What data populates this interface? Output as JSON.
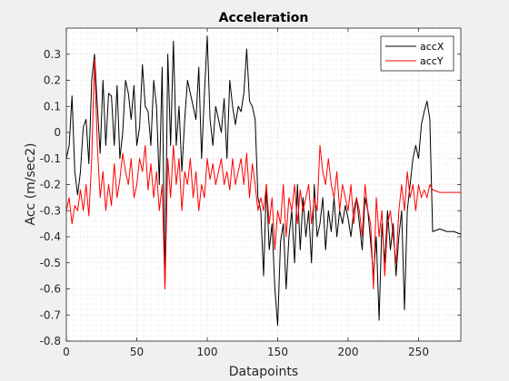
{
  "chart_data": {
    "type": "line",
    "title": "Acceleration",
    "xlabel": "Datapoints",
    "ylabel": "Acc (m/sec2)",
    "xlim": [
      0,
      280
    ],
    "ylim": [
      -0.8,
      0.4
    ],
    "xticks": [
      0,
      50,
      100,
      150,
      200,
      250
    ],
    "yticks": [
      -0.8,
      -0.7,
      -0.6,
      -0.5,
      -0.4,
      -0.3,
      -0.2,
      -0.1,
      0,
      0.1,
      0.2,
      0.3
    ],
    "grid": true,
    "minor_grid": true,
    "legend_position": "top-right",
    "series": [
      {
        "name": "accX",
        "color": "#000000",
        "x": [
          0,
          2,
          4,
          6,
          8,
          10,
          12,
          14,
          16,
          18,
          20,
          22,
          24,
          26,
          28,
          30,
          32,
          34,
          36,
          38,
          40,
          42,
          44,
          46,
          48,
          50,
          52,
          54,
          56,
          58,
          60,
          62,
          64,
          66,
          68,
          70,
          72,
          74,
          76,
          78,
          80,
          82,
          84,
          86,
          88,
          90,
          92,
          94,
          96,
          98,
          100,
          102,
          104,
          106,
          108,
          110,
          112,
          114,
          116,
          118,
          120,
          122,
          124,
          126,
          128,
          130,
          132,
          134,
          136,
          138,
          140,
          142,
          144,
          146,
          148,
          150,
          152,
          154,
          156,
          158,
          160,
          162,
          164,
          166,
          168,
          170,
          172,
          174,
          176,
          178,
          180,
          182,
          184,
          186,
          188,
          190,
          192,
          194,
          196,
          198,
          200,
          202,
          204,
          206,
          208,
          210,
          212,
          214,
          216,
          218,
          220,
          222,
          224,
          226,
          228,
          230,
          232,
          234,
          236,
          238,
          240,
          242,
          244,
          246,
          248,
          250,
          252,
          254,
          256,
          258,
          260,
          265,
          270,
          275,
          280
        ],
        "y": [
          -0.1,
          -0.05,
          0.14,
          -0.15,
          -0.24,
          -0.15,
          0.02,
          0.05,
          -0.12,
          0.2,
          0.3,
          0.1,
          -0.08,
          0.2,
          -0.05,
          0.15,
          0.14,
          -0.05,
          0.18,
          -0.1,
          0.0,
          0.2,
          0.15,
          0.05,
          0.18,
          -0.05,
          0.02,
          0.26,
          0.1,
          0.08,
          -0.05,
          0.2,
          0.1,
          -0.2,
          0.25,
          -0.6,
          0.3,
          -0.05,
          0.35,
          -0.05,
          0.1,
          -0.15,
          0.05,
          0.2,
          0.15,
          0.1,
          0.05,
          0.25,
          -0.1,
          0.15,
          0.37,
          0.05,
          -0.05,
          0.1,
          0.05,
          0.0,
          0.13,
          -0.1,
          0.2,
          0.1,
          0.03,
          0.1,
          0.08,
          0.15,
          0.32,
          0.12,
          0.1,
          0.05,
          -0.25,
          -0.3,
          -0.55,
          -0.2,
          -0.45,
          -0.35,
          -0.6,
          -0.74,
          -0.42,
          -0.35,
          -0.6,
          -0.4,
          -0.3,
          -0.5,
          -0.2,
          -0.45,
          -0.25,
          -0.4,
          -0.3,
          -0.5,
          -0.2,
          -0.4,
          -0.35,
          -0.25,
          -0.45,
          -0.3,
          -0.38,
          -0.25,
          -0.4,
          -0.3,
          -0.35,
          -0.28,
          -0.33,
          -0.4,
          -0.3,
          -0.25,
          -0.35,
          -0.45,
          -0.25,
          -0.3,
          -0.42,
          -0.55,
          -0.4,
          -0.72,
          -0.35,
          -0.5,
          -0.3,
          -0.45,
          -0.35,
          -0.55,
          -0.4,
          -0.3,
          -0.68,
          -0.3,
          -0.2,
          -0.1,
          -0.05,
          -0.1,
          0.03,
          0.08,
          0.12,
          0.05,
          -0.38,
          -0.37,
          -0.38,
          -0.38,
          -0.39
        ]
      },
      {
        "name": "accY",
        "color": "#ff0000",
        "x": [
          0,
          2,
          4,
          6,
          8,
          10,
          12,
          14,
          16,
          18,
          20,
          22,
          24,
          26,
          28,
          30,
          32,
          34,
          36,
          38,
          40,
          42,
          44,
          46,
          48,
          50,
          52,
          54,
          56,
          58,
          60,
          62,
          64,
          66,
          68,
          70,
          72,
          74,
          76,
          78,
          80,
          82,
          84,
          86,
          88,
          90,
          92,
          94,
          96,
          98,
          100,
          102,
          104,
          106,
          108,
          110,
          112,
          114,
          116,
          118,
          120,
          122,
          124,
          126,
          128,
          130,
          132,
          134,
          136,
          138,
          140,
          142,
          144,
          146,
          148,
          150,
          152,
          154,
          156,
          158,
          160,
          162,
          164,
          166,
          168,
          170,
          172,
          174,
          176,
          178,
          180,
          182,
          184,
          186,
          188,
          190,
          192,
          194,
          196,
          198,
          200,
          202,
          204,
          206,
          208,
          210,
          212,
          214,
          216,
          218,
          220,
          222,
          224,
          226,
          228,
          230,
          232,
          234,
          236,
          238,
          240,
          242,
          244,
          246,
          248,
          250,
          252,
          254,
          256,
          258,
          260,
          265,
          270,
          275,
          280
        ],
        "y": [
          -0.3,
          -0.25,
          -0.35,
          -0.28,
          -0.3,
          -0.22,
          -0.3,
          -0.2,
          -0.32,
          -0.1,
          0.28,
          -0.05,
          -0.25,
          -0.15,
          -0.3,
          -0.2,
          -0.28,
          -0.12,
          -0.25,
          -0.18,
          -0.08,
          -0.15,
          -0.2,
          -0.1,
          -0.25,
          -0.2,
          -0.1,
          -0.15,
          -0.05,
          -0.22,
          -0.12,
          -0.25,
          -0.15,
          -0.3,
          -0.2,
          -0.6,
          -0.1,
          -0.25,
          -0.05,
          -0.2,
          -0.1,
          -0.3,
          -0.15,
          -0.2,
          -0.1,
          -0.25,
          -0.15,
          -0.3,
          -0.2,
          -0.25,
          -0.1,
          -0.18,
          -0.12,
          -0.2,
          -0.15,
          -0.1,
          -0.2,
          -0.15,
          -0.22,
          -0.1,
          -0.2,
          -0.15,
          -0.1,
          -0.2,
          -0.08,
          -0.25,
          -0.12,
          -0.2,
          -0.3,
          -0.25,
          -0.3,
          -0.2,
          -0.35,
          -0.25,
          -0.45,
          -0.3,
          -0.35,
          -0.2,
          -0.4,
          -0.25,
          -0.3,
          -0.2,
          -0.35,
          -0.22,
          -0.3,
          -0.25,
          -0.2,
          -0.35,
          -0.25,
          -0.3,
          -0.05,
          -0.15,
          -0.2,
          -0.1,
          -0.2,
          -0.25,
          -0.15,
          -0.3,
          -0.2,
          -0.25,
          -0.3,
          -0.2,
          -0.35,
          -0.25,
          -0.3,
          -0.4,
          -0.2,
          -0.3,
          -0.35,
          -0.6,
          -0.25,
          -0.4,
          -0.3,
          -0.55,
          -0.35,
          -0.3,
          -0.4,
          -0.5,
          -0.3,
          -0.2,
          -0.3,
          -0.15,
          -0.25,
          -0.2,
          -0.3,
          -0.2,
          -0.25,
          -0.22,
          -0.25,
          -0.2,
          -0.22,
          -0.23,
          -0.23,
          -0.23,
          -0.23
        ]
      }
    ]
  }
}
